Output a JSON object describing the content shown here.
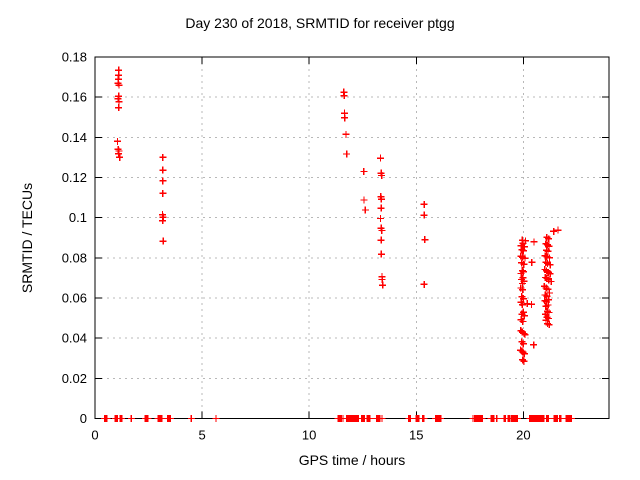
{
  "chart_data": {
    "type": "scatter",
    "title": "Day 230 of 2018, SRMTID for receiver ptgg",
    "xlabel": "GPS time / hours",
    "ylabel": "SRMTID / TECUs",
    "xlim": [
      0,
      24
    ],
    "ylim": [
      0,
      0.18
    ],
    "x_ticks": [
      {
        "v": 0,
        "label": "0"
      },
      {
        "v": 5,
        "label": "5"
      },
      {
        "v": 10,
        "label": "10"
      },
      {
        "v": 15,
        "label": "15"
      },
      {
        "v": 20,
        "label": "20"
      }
    ],
    "y_ticks": [
      {
        "v": 0,
        "label": "0"
      },
      {
        "v": 0.02,
        "label": "0.02"
      },
      {
        "v": 0.04,
        "label": "0.04"
      },
      {
        "v": 0.06,
        "label": "0.06"
      },
      {
        "v": 0.08,
        "label": "0.08"
      },
      {
        "v": 0.1,
        "label": "0.1"
      },
      {
        "v": 0.12,
        "label": "0.12"
      },
      {
        "v": 0.14,
        "label": "0.14"
      },
      {
        "v": 0.16,
        "label": "0.16"
      },
      {
        "v": 0.18,
        "label": "0.18"
      }
    ],
    "grid": true,
    "legend_position": "none",
    "marker": {
      "shape": "plus",
      "color": "#ff0000",
      "size": 7
    },
    "frame_color": "#000000",
    "grid_color": "#b8b8b8",
    "series": [
      {
        "name": "SRMTID",
        "points": [
          [
            1.1,
            0.1735
          ],
          [
            1.1,
            0.171
          ],
          [
            1.09,
            0.169
          ],
          [
            1.08,
            0.167
          ],
          [
            1.12,
            0.166
          ],
          [
            1.1,
            0.1605
          ],
          [
            1.08,
            0.1592
          ],
          [
            1.12,
            0.1578
          ],
          [
            1.1,
            0.1548
          ],
          [
            1.05,
            0.138
          ],
          [
            1.08,
            0.134
          ],
          [
            1.12,
            0.1332
          ],
          [
            1.1,
            0.1318
          ],
          [
            1.15,
            0.13
          ],
          [
            3.17,
            0.13
          ],
          [
            3.17,
            0.1237
          ],
          [
            3.17,
            0.1183
          ],
          [
            3.17,
            0.1121
          ],
          [
            3.15,
            0.1015
          ],
          [
            3.18,
            0.1003
          ],
          [
            3.16,
            0.0985
          ],
          [
            3.18,
            0.0883
          ],
          [
            11.62,
            0.1625
          ],
          [
            11.63,
            0.1608
          ],
          [
            11.65,
            0.152
          ],
          [
            11.66,
            0.1497
          ],
          [
            11.72,
            0.1415
          ],
          [
            11.75,
            0.1317
          ],
          [
            12.55,
            0.123
          ],
          [
            12.56,
            0.1088
          ],
          [
            12.62,
            0.1038
          ],
          [
            13.33,
            0.1296
          ],
          [
            13.36,
            0.1222
          ],
          [
            13.38,
            0.121
          ],
          [
            13.35,
            0.1105
          ],
          [
            13.37,
            0.1092
          ],
          [
            13.36,
            0.1047
          ],
          [
            13.33,
            0.0996
          ],
          [
            13.36,
            0.0948
          ],
          [
            13.39,
            0.0936
          ],
          [
            13.36,
            0.0888
          ],
          [
            13.37,
            0.0818
          ],
          [
            13.4,
            0.0706
          ],
          [
            13.41,
            0.0692
          ],
          [
            13.43,
            0.0664
          ],
          [
            15.37,
            0.1066
          ],
          [
            15.37,
            0.1013
          ],
          [
            15.4,
            0.0891
          ],
          [
            15.37,
            0.0668
          ],
          [
            19.95,
            0.0888
          ],
          [
            20.1,
            0.0885
          ],
          [
            19.98,
            0.0872
          ],
          [
            19.9,
            0.086
          ],
          [
            20.05,
            0.0855
          ],
          [
            19.93,
            0.084
          ],
          [
            20.0,
            0.0835
          ],
          [
            19.88,
            0.0808
          ],
          [
            19.97,
            0.0803
          ],
          [
            20.08,
            0.0798
          ],
          [
            19.92,
            0.0775
          ],
          [
            20.02,
            0.0768
          ],
          [
            19.95,
            0.0736
          ],
          [
            20.0,
            0.073
          ],
          [
            19.9,
            0.0722
          ],
          [
            19.98,
            0.07
          ],
          [
            19.92,
            0.0692
          ],
          [
            20.03,
            0.0683
          ],
          [
            19.96,
            0.0672
          ],
          [
            19.88,
            0.065
          ],
          [
            19.97,
            0.0642
          ],
          [
            19.93,
            0.0607
          ],
          [
            20.0,
            0.0597
          ],
          [
            19.9,
            0.0578
          ],
          [
            20.18,
            0.0572
          ],
          [
            19.95,
            0.0567
          ],
          [
            20.0,
            0.053
          ],
          [
            19.93,
            0.052
          ],
          [
            20.05,
            0.0512
          ],
          [
            19.9,
            0.0492
          ],
          [
            19.98,
            0.0483
          ],
          [
            19.88,
            0.0437
          ],
          [
            19.95,
            0.043
          ],
          [
            20.03,
            0.0423
          ],
          [
            20.08,
            0.0418
          ],
          [
            19.93,
            0.0382
          ],
          [
            20.0,
            0.0372
          ],
          [
            19.87,
            0.034
          ],
          [
            19.93,
            0.0336
          ],
          [
            19.98,
            0.033
          ],
          [
            20.05,
            0.0322
          ],
          [
            19.97,
            0.0292
          ],
          [
            20.03,
            0.0285
          ],
          [
            20.5,
            0.088
          ],
          [
            20.4,
            0.0778
          ],
          [
            20.38,
            0.0568
          ],
          [
            20.48,
            0.0367
          ],
          [
            21.42,
            0.0932
          ],
          [
            21.62,
            0.0938
          ],
          [
            21.1,
            0.0902
          ],
          [
            21.18,
            0.0895
          ],
          [
            21.05,
            0.087
          ],
          [
            21.12,
            0.0865
          ],
          [
            21.2,
            0.0858
          ],
          [
            21.08,
            0.0838
          ],
          [
            21.15,
            0.0832
          ],
          [
            21.02,
            0.081
          ],
          [
            21.1,
            0.0805
          ],
          [
            21.22,
            0.08
          ],
          [
            21.05,
            0.0778
          ],
          [
            21.13,
            0.0772
          ],
          [
            21.25,
            0.0765
          ],
          [
            21.0,
            0.0742
          ],
          [
            21.08,
            0.0735
          ],
          [
            21.17,
            0.0728
          ],
          [
            21.25,
            0.072
          ],
          [
            21.03,
            0.0702
          ],
          [
            21.1,
            0.0697
          ],
          [
            21.18,
            0.069
          ],
          [
            21.3,
            0.0682
          ],
          [
            20.98,
            0.0658
          ],
          [
            21.07,
            0.065
          ],
          [
            21.15,
            0.0643
          ],
          [
            21.22,
            0.0625
          ],
          [
            21.02,
            0.0615
          ],
          [
            21.1,
            0.0608
          ],
          [
            21.18,
            0.0592
          ],
          [
            21.0,
            0.0587
          ],
          [
            21.08,
            0.058
          ],
          [
            21.16,
            0.0565
          ],
          [
            21.05,
            0.0558
          ],
          [
            21.12,
            0.0535
          ],
          [
            21.2,
            0.0528
          ],
          [
            21.03,
            0.052
          ],
          [
            21.1,
            0.0505
          ],
          [
            21.17,
            0.0498
          ],
          [
            21.06,
            0.049
          ],
          [
            21.13,
            0.0472
          ],
          [
            21.21,
            0.0467
          ]
        ]
      }
    ],
    "zero_points_x": [
      0.45,
      0.5,
      0.55,
      0.95,
      1.0,
      1.05,
      1.18,
      1.24,
      1.7,
      2.35,
      2.4,
      2.47,
      2.95,
      3.0,
      3.06,
      3.12,
      3.4,
      3.46,
      3.52,
      4.5,
      5.65,
      11.35,
      11.42,
      11.5,
      11.58,
      11.75,
      11.8,
      11.85,
      11.9,
      11.95,
      12.0,
      12.05,
      12.1,
      12.15,
      12.22,
      12.3,
      12.45,
      12.5,
      12.57,
      12.7,
      12.76,
      12.82,
      13.15,
      13.22,
      13.3,
      13.4,
      14.65,
      14.72,
      15.0,
      15.06,
      15.12,
      15.3,
      15.36,
      15.9,
      15.96,
      16.02,
      16.08,
      16.14,
      17.65,
      17.72,
      17.78,
      17.84,
      17.9,
      17.96,
      18.02,
      18.08,
      18.5,
      18.56,
      18.62,
      18.76,
      19.1,
      19.16,
      19.3,
      19.36,
      19.45,
      19.52,
      19.6,
      19.66,
      19.72,
      20.3,
      20.36,
      20.42,
      20.48,
      20.54,
      20.6,
      20.66,
      20.72,
      20.78,
      20.84,
      20.9,
      20.96,
      21.1,
      21.16,
      21.45,
      21.52,
      21.58,
      21.7,
      21.76,
      22.0,
      22.06,
      22.12,
      22.18,
      22.24
    ]
  }
}
